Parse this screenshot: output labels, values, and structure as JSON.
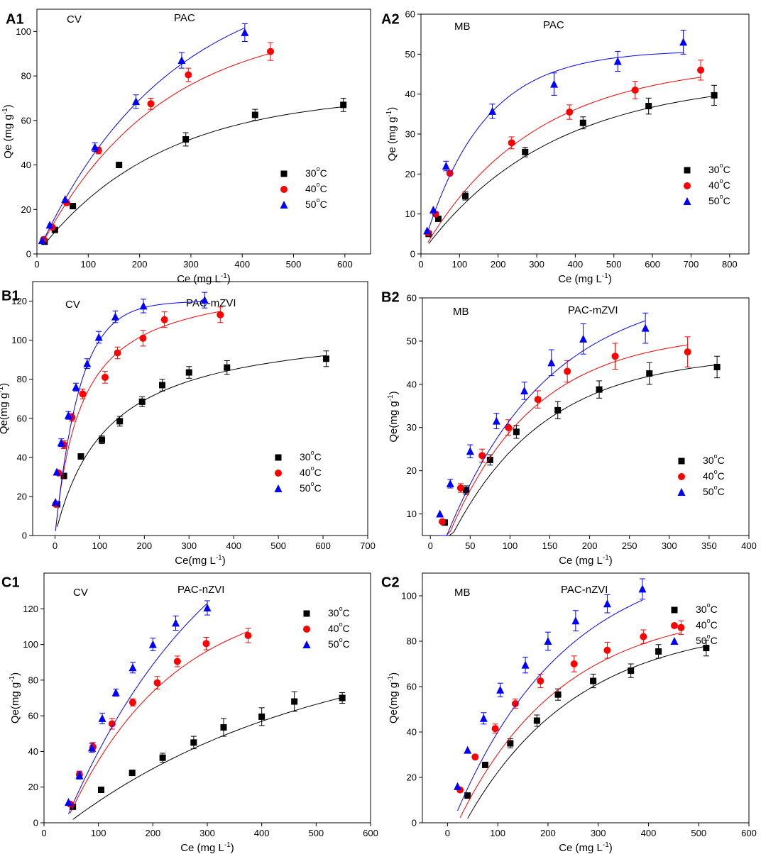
{
  "figure": {
    "legend_labels": [
      "30°C",
      "40°C",
      "50°C"
    ],
    "series_colors": [
      "#000000",
      "#ff0000",
      "#0000ff"
    ]
  },
  "chart_data": [
    {
      "id": "A1",
      "type": "scatter",
      "panel_label": "A1",
      "dye": "CV",
      "adsorbent": "PAC",
      "xlabel": "Ce (mg L-1)",
      "ylabel": "Qe (mg g-1)",
      "xlim": [
        0,
        650
      ],
      "ylim": [
        0,
        110
      ],
      "xticks": [
        0,
        100,
        200,
        300,
        400,
        500,
        600
      ],
      "yticks": [
        0,
        20,
        40,
        60,
        80,
        100
      ],
      "series": [
        {
          "name": "30°C",
          "marker": "square",
          "color": "#000000",
          "x": [
            15,
            35,
            70,
            160,
            290,
            425,
            597
          ],
          "y": [
            5.5,
            10.8,
            21.5,
            40,
            51.5,
            62.5,
            67
          ],
          "err": [
            0,
            0,
            0,
            1.2,
            3.0,
            2.5,
            3.0
          ],
          "fit": {
            "kind": "exp",
            "qmax": 72,
            "k": 0.0042
          }
        },
        {
          "name": "40°C",
          "marker": "circle",
          "color": "#ff0000",
          "x": [
            13,
            30,
            58,
            120,
            222,
            295,
            455
          ],
          "y": [
            6.5,
            12,
            23,
            46.5,
            67.5,
            80.5,
            91
          ],
          "err": [
            0,
            0,
            0,
            1.5,
            2.5,
            3.0,
            4.0
          ],
          "fit": {
            "kind": "exp",
            "qmax": 105,
            "k": 0.0043
          }
        },
        {
          "name": "50°C",
          "marker": "triangle",
          "color": "#0000ff",
          "x": [
            10,
            25,
            55,
            113,
            193,
            282,
            405
          ],
          "y": [
            6,
            13,
            24.5,
            48,
            68.5,
            87,
            99.5
          ],
          "err": [
            0,
            0,
            0,
            2.0,
            3.0,
            3.5,
            4.0
          ],
          "fit": {
            "kind": "exp",
            "qmax": 128,
            "k": 0.0039
          }
        }
      ]
    },
    {
      "id": "A2",
      "type": "scatter",
      "panel_label": "A2",
      "dye": "MB",
      "adsorbent": "PAC",
      "xlabel": "Ce (mg L-1)",
      "ylabel": "Qe (mg g-1)",
      "xlim": [
        0,
        850
      ],
      "ylim": [
        0,
        60
      ],
      "xticks": [
        0,
        100,
        200,
        300,
        400,
        500,
        600,
        700,
        800
      ],
      "yticks": [
        0,
        10,
        20,
        30,
        40,
        50,
        60
      ],
      "series": [
        {
          "name": "30°C",
          "marker": "square",
          "color": "#000000",
          "x": [
            20,
            45,
            115,
            270,
            420,
            590,
            760
          ],
          "y": [
            5,
            8.8,
            14.5,
            25.5,
            32.8,
            37,
            39.7
          ],
          "err": [
            0,
            0,
            1.0,
            1.2,
            1.5,
            2.0,
            2.5
          ],
          "fit": {
            "kind": "exp",
            "qmax": 44,
            "k": 0.003
          }
        },
        {
          "name": "40°C",
          "marker": "circle",
          "color": "#ff0000",
          "x": [
            18,
            38,
            75,
            235,
            385,
            555,
            725
          ],
          "y": [
            5.3,
            10,
            20.2,
            27.8,
            35.5,
            41,
            46
          ],
          "err": [
            0,
            0,
            0,
            1.5,
            1.8,
            2.2,
            2.5
          ],
          "fit": {
            "kind": "exp",
            "qmax": 48,
            "k": 0.0035
          }
        },
        {
          "name": "50°C",
          "marker": "triangle",
          "color": "#0000ff",
          "x": [
            16,
            32,
            65,
            185,
            345,
            510,
            680
          ],
          "y": [
            5.8,
            11,
            22,
            35.7,
            42.5,
            48.2,
            53
          ],
          "err": [
            0,
            0,
            1.2,
            1.8,
            2.8,
            2.5,
            3.0
          ],
          "fit": {
            "kind": "exp",
            "qmax": 51,
            "k": 0.0065
          }
        }
      ]
    },
    {
      "id": "B1",
      "type": "scatter",
      "panel_label": "B1",
      "dye": "CV",
      "adsorbent": "PAC-mZVI",
      "xlabel": "Ce(mg L-1)",
      "ylabel": "Qe(mg g-1)",
      "xlim": [
        -50,
        700
      ],
      "ylim": [
        0,
        130
      ],
      "xticks": [
        0,
        100,
        200,
        300,
        400,
        500,
        600,
        700
      ],
      "yticks": [
        0,
        20,
        40,
        60,
        80,
        100,
        120
      ],
      "series": [
        {
          "name": "30°C",
          "marker": "square",
          "color": "#000000",
          "x": [
            5,
            20,
            58,
            105,
            145,
            195,
            240,
            300,
            385,
            607
          ],
          "y": [
            16,
            30.5,
            40.5,
            49,
            58.5,
            68.5,
            77,
            83.5,
            86,
            90.5
          ],
          "err": [
            0,
            0,
            0,
            2.0,
            2.5,
            2.5,
            3.0,
            3.0,
            3.5,
            4.0
          ],
          "fit": {
            "kind": "lang",
            "qmax": 110,
            "k": 0.0085
          }
        },
        {
          "name": "40°C",
          "marker": "circle",
          "color": "#ff0000",
          "x": [
            2,
            8,
            20,
            38,
            62,
            112,
            140,
            197,
            245,
            370
          ],
          "y": [
            16,
            32,
            46.5,
            60.5,
            72.5,
            81,
            93.5,
            101,
            110.5,
            113
          ],
          "err": [
            0,
            0,
            2.0,
            2.0,
            2.5,
            3.0,
            3.0,
            4.0,
            4.0,
            4.0
          ],
          "fit": {
            "kind": "lang",
            "qmax": 133,
            "k": 0.017
          }
        },
        {
          "name": "50°C",
          "marker": "triangle",
          "color": "#0000ff",
          "x": [
            1,
            4,
            14,
            30,
            47,
            72,
            98,
            135,
            198,
            335
          ],
          "y": [
            17,
            32.5,
            47.5,
            61.5,
            76,
            88,
            101.5,
            112,
            117.5,
            120.5
          ],
          "err": [
            0,
            0,
            2.0,
            2.0,
            2.0,
            2.5,
            3.0,
            3.0,
            3.5,
            4.0
          ],
          "fit": {
            "kind": "exp",
            "qmax": 120,
            "k": 0.018
          }
        }
      ]
    },
    {
      "id": "B2",
      "type": "scatter",
      "panel_label": "B2",
      "dye": "MB",
      "adsorbent": "PAC-mZVI",
      "xlabel": "Ce (mg L-1)",
      "ylabel": "Qe(mg g-1)",
      "xlim": [
        -10,
        400
      ],
      "ylim": [
        5,
        60
      ],
      "xticks": [
        0,
        50,
        100,
        150,
        200,
        250,
        300,
        350,
        400
      ],
      "yticks": [
        10,
        20,
        30,
        40,
        50,
        60
      ],
      "series": [
        {
          "name": "30°C",
          "marker": "square",
          "color": "#000000",
          "x": [
            18,
            45,
            75,
            108,
            160,
            212,
            275,
            360
          ],
          "y": [
            8,
            15.5,
            22.5,
            29,
            34,
            38.8,
            42.5,
            44
          ],
          "err": [
            0,
            1.0,
            1.2,
            1.5,
            2.0,
            2.0,
            2.5,
            2.5
          ],
          "fit": {
            "kind": "exp",
            "qmax": 47,
            "k": 0.0085,
            "x0": 14
          }
        },
        {
          "name": "40°C",
          "marker": "circle",
          "color": "#ff0000",
          "x": [
            15,
            38,
            65,
            98,
            135,
            172,
            232,
            323
          ],
          "y": [
            8.2,
            16,
            23.5,
            30,
            36.5,
            43,
            46.5,
            47.5
          ],
          "err": [
            0,
            1.0,
            1.5,
            1.8,
            2.0,
            2.5,
            3.0,
            3.5
          ],
          "fit": {
            "kind": "exp",
            "qmax": 52,
            "k": 0.0093,
            "x0": 12
          }
        },
        {
          "name": "50°C",
          "marker": "triangle",
          "color": "#0000ff",
          "x": [
            12,
            25,
            50,
            83,
            118,
            152,
            192,
            270
          ],
          "y": [
            10,
            17,
            24.5,
            31.5,
            38.5,
            45,
            50.5,
            53
          ],
          "err": [
            0,
            1.0,
            1.5,
            1.8,
            2.0,
            3.0,
            3.5,
            3.5
          ],
          "fit": {
            "kind": "exp",
            "qmax": 63,
            "k": 0.0078,
            "x0": 10
          }
        }
      ]
    },
    {
      "id": "C1",
      "type": "scatter",
      "panel_label": "C1",
      "dye": "CV",
      "adsorbent": "PAC-nZVI",
      "xlabel": "Ce (mg L-1)",
      "ylabel": "Qe(mg g-1)",
      "xlim": [
        0,
        600
      ],
      "ylim": [
        0,
        140
      ],
      "xticks": [
        0,
        100,
        200,
        300,
        400,
        500,
        600
      ],
      "yticks": [
        0,
        20,
        40,
        60,
        80,
        100,
        120
      ],
      "series": [
        {
          "name": "30°C",
          "marker": "square",
          "color": "#000000",
          "x": [
            53,
            105,
            162,
            218,
            275,
            330,
            400,
            460,
            548
          ],
          "y": [
            9,
            18.5,
            28,
            36.5,
            45,
            53.5,
            59.5,
            68,
            70
          ],
          "err": [
            0,
            0,
            1.0,
            2.5,
            3.5,
            5.0,
            5.0,
            5.5,
            3.0
          ],
          "fit": {
            "kind": "exp",
            "qmax": 105,
            "k": 0.0022,
            "x0": 45
          }
        },
        {
          "name": "40°C",
          "marker": "circle",
          "color": "#ff0000",
          "x": [
            48,
            65,
            90,
            125,
            163,
            208,
            245,
            298,
            375
          ],
          "y": [
            10.5,
            27,
            42.5,
            55.5,
            67.5,
            78.5,
            90.5,
            100.5,
            105
          ],
          "err": [
            0,
            2.0,
            2.5,
            3.0,
            2.0,
            3.5,
            3.0,
            3.5,
            4.0
          ],
          "fit": {
            "kind": "exp",
            "qmax": 130,
            "k": 0.0052,
            "x0": 40
          }
        },
        {
          "name": "50°C",
          "marker": "triangle",
          "color": "#0000ff",
          "x": [
            45,
            65,
            88,
            107,
            132,
            163,
            200,
            242,
            300
          ],
          "y": [
            11.5,
            26.5,
            42,
            58.5,
            73,
            87,
            100,
            112,
            120.5
          ],
          "err": [
            0,
            2.0,
            2.5,
            3.0,
            2.0,
            3.0,
            3.5,
            4.0,
            4.0
          ],
          "fit": {
            "kind": "exp",
            "qmax": 205,
            "k": 0.0035,
            "x0": 38
          }
        }
      ]
    },
    {
      "id": "C2",
      "type": "scatter",
      "panel_label": "C2",
      "dye": "MB",
      "adsorbent": "PAC-nZVI",
      "xlabel": "Ce (mg L-1)",
      "ylabel": "Qe(mg g-1)",
      "xlim": [
        -50,
        600
      ],
      "ylim": [
        0,
        110
      ],
      "xticks": [
        0,
        100,
        200,
        300,
        400,
        500,
        600
      ],
      "yticks": [
        0,
        20,
        40,
        60,
        80,
        100
      ],
      "series": [
        {
          "name": "30°C",
          "marker": "square",
          "color": "#000000",
          "x": [
            40,
            75,
            125,
            178,
            220,
            290,
            365,
            420,
            515
          ],
          "y": [
            12,
            25.5,
            35,
            45,
            56.5,
            62.5,
            67,
            75.5,
            77
          ],
          "err": [
            0,
            1.0,
            2.0,
            2.5,
            2.5,
            3.0,
            3.0,
            3.0,
            3.5
          ],
          "fit": {
            "kind": "exp",
            "qmax": 88,
            "k": 0.0045,
            "x0": 35
          }
        },
        {
          "name": "40°C",
          "marker": "circle",
          "color": "#ff0000",
          "x": [
            25,
            55,
            95,
            135,
            185,
            252,
            318,
            390,
            465
          ],
          "y": [
            14.5,
            29,
            41.5,
            52.5,
            62.5,
            70,
            76,
            82,
            86
          ],
          "err": [
            0,
            0,
            2.0,
            2.0,
            3.0,
            3.5,
            3.5,
            3.0,
            3.0
          ],
          "fit": {
            "kind": "exp",
            "qmax": 95,
            "k": 0.0048,
            "x0": 20
          }
        },
        {
          "name": "50°C",
          "marker": "triangle",
          "color": "#0000ff",
          "x": [
            20,
            40,
            72,
            105,
            155,
            200,
            255,
            318,
            388
          ],
          "y": [
            16,
            32,
            46,
            58.5,
            69.5,
            80,
            89,
            96.5,
            103
          ],
          "err": [
            0,
            0,
            2.5,
            3.0,
            3.5,
            4.0,
            4.5,
            4.0,
            4.5
          ],
          "fit": {
            "kind": "exp",
            "qmax": 120,
            "k": 0.0045,
            "x0": 10
          }
        }
      ]
    }
  ]
}
